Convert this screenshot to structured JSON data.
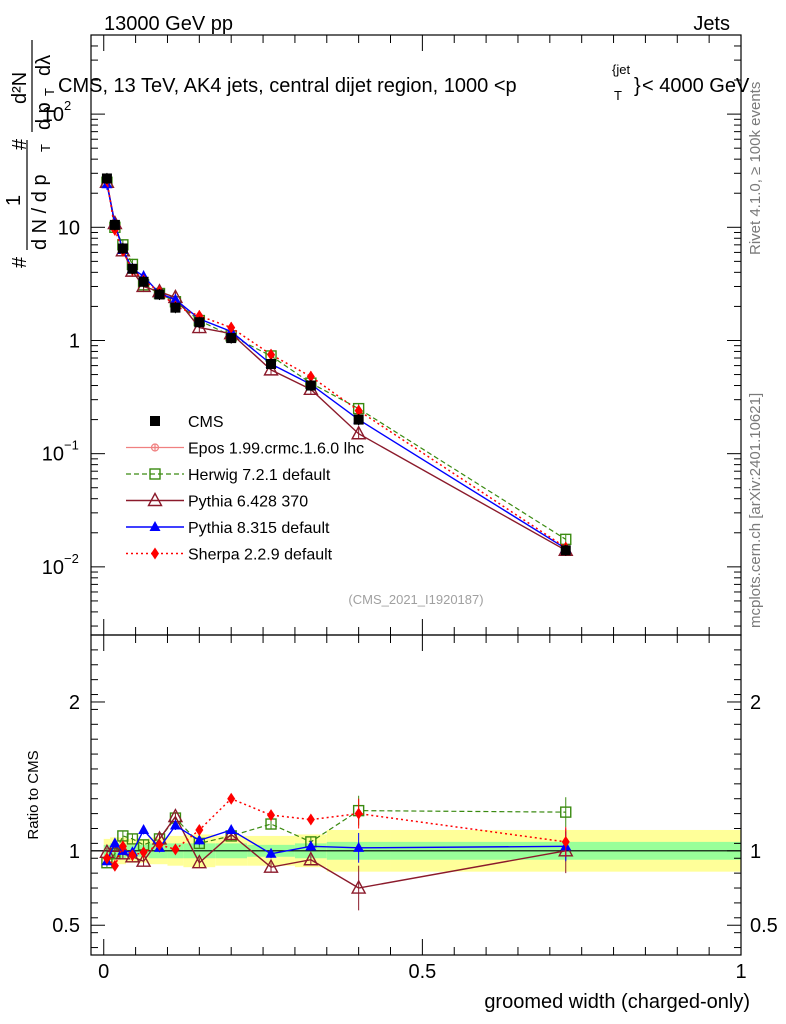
{
  "header": {
    "left": "13000 GeV pp",
    "right": "Jets"
  },
  "side": {
    "rivet": "Rivet 4.1.0, ≥ 100k events",
    "mcplots": "mcplots.cern.ch [arXiv:2401.10621]"
  },
  "colors": {
    "cms": "#000000",
    "epos": "#f08080",
    "herwig": "#3a8a10",
    "pythia6": "#8b1a2b",
    "pythia8": "#0000ff",
    "sherpa": "#ff0000",
    "band_green": "#99ff99",
    "band_yellow": "#ffff99"
  },
  "chart_data": [
    {
      "type": "scatter",
      "panel": "main",
      "title": "CMS, 13 TeV, AK4 jets, central dijet region, 1000 <p_T^{jet}< 4000 GeV",
      "title_parts": {
        "main": "CMS, 13 TeV, AK4 jets, central dijet region, 1000 <p",
        "sup": "{jet",
        "sub": "T",
        "close": "}",
        "tail": "< 4000 GeV"
      },
      "ylabel_parts": {
        "hash": "#",
        "one": "1",
        "dN": "d N / d p",
        "T": "T",
        "d2N": "d²N",
        "dpt": "d p",
        "dlam": "dλ"
      },
      "yscale": "log",
      "ylim": [
        0.0025,
        500
      ],
      "xlim": [
        -0.02,
        1.0
      ],
      "yticks": [
        {
          "v": 0.01,
          "base": "10",
          "exp": "−2"
        },
        {
          "v": 0.1,
          "base": "10",
          "exp": "−1"
        },
        {
          "v": 1,
          "base": "1",
          "exp": ""
        },
        {
          "v": 10,
          "base": "10",
          "exp": ""
        },
        {
          "v": 100,
          "base": "10",
          "exp": "2"
        }
      ],
      "watermark": "(CMS_2021_I1920187)",
      "legend": [
        "CMS",
        "Epos 1.99.crmc.1.6.0 lhc",
        "Herwig 7.2.1 default",
        "Pythia 6.428 370",
        "Pythia 8.315 default",
        "Sherpa 2.2.9 default"
      ],
      "x": [
        0.005,
        0.0175,
        0.03,
        0.045,
        0.0625,
        0.0875,
        0.1125,
        0.15,
        0.2,
        0.2625,
        0.325,
        0.4,
        0.725
      ],
      "series": [
        {
          "name": "CMS",
          "key": "cms",
          "values": [
            27,
            10.5,
            6.5,
            4.3,
            3.3,
            2.55,
            1.95,
            1.45,
            1.05,
            0.62,
            0.4,
            0.2,
            0.014
          ]
        },
        {
          "name": "Epos 1.99.crmc.1.6.0 lhc",
          "key": "epos",
          "values": []
        },
        {
          "name": "Herwig 7.2.1 default",
          "key": "herwig",
          "values": [
            25,
            10,
            7,
            4.7,
            3.1,
            2.6,
            2.2,
            1.5,
            1.1,
            0.73,
            0.42,
            0.25,
            0.0175
          ]
        },
        {
          "name": "Pythia 6.428 370",
          "key": "pythia6",
          "values": [
            25,
            10.8,
            6.2,
            4.1,
            3.0,
            2.7,
            2.4,
            1.3,
            1.15,
            0.55,
            0.37,
            0.15,
            0.014
          ]
        },
        {
          "name": "Pythia 8.315 default",
          "key": "pythia8",
          "values": [
            24,
            10.8,
            6.3,
            4.3,
            3.7,
            2.6,
            2.3,
            1.55,
            1.2,
            0.62,
            0.41,
            0.2,
            0.0145
          ]
        },
        {
          "name": "Sherpa 2.2.9 default",
          "key": "sherpa",
          "values": [
            26,
            9.5,
            6.2,
            4.2,
            3.4,
            2.7,
            2.0,
            1.65,
            1.3,
            0.75,
            0.48,
            0.24,
            0.0148
          ]
        }
      ]
    },
    {
      "type": "scatter",
      "panel": "ratio",
      "ylabel": "Ratio to CMS",
      "xlabel": "groomed width (charged-only)",
      "ylim": [
        0.3,
        2.45
      ],
      "yticks": [
        0.5,
        1,
        2
      ],
      "xticks": [
        0,
        0.5,
        1
      ],
      "xtick_labels": [
        "0",
        "0.5",
        "1"
      ],
      "reference": 1,
      "band_edges": [
        0.0,
        0.01,
        0.025,
        0.035,
        0.055,
        0.07,
        0.1,
        0.125,
        0.175,
        0.225,
        0.3,
        0.35,
        0.45,
        1.0
      ],
      "band_green_halfwidth": [
        0.04,
        0.05,
        0.05,
        0.04,
        0.04,
        0.05,
        0.05,
        0.05,
        0.05,
        0.04,
        0.05,
        0.06,
        0.06
      ],
      "band_yellow_halfwidth": [
        0.08,
        0.09,
        0.09,
        0.08,
        0.08,
        0.09,
        0.1,
        0.11,
        0.1,
        0.1,
        0.11,
        0.14,
        0.14
      ],
      "x": [
        0.005,
        0.0175,
        0.03,
        0.045,
        0.0625,
        0.0875,
        0.1125,
        0.15,
        0.2,
        0.2625,
        0.325,
        0.4,
        0.725
      ],
      "series": [
        {
          "name": "Herwig 7.2.1 default",
          "key": "herwig",
          "values": [
            0.92,
            0.98,
            1.1,
            1.08,
            1.04,
            1.08,
            1.22,
            1.05,
            1.1,
            1.18,
            1.06,
            1.27,
            1.26
          ]
        },
        {
          "name": "Pythia 6.428 370",
          "key": "pythia6",
          "values": [
            0.99,
            1.03,
            0.98,
            0.96,
            0.93,
            1.08,
            1.23,
            0.92,
            1.11,
            0.89,
            0.94,
            0.75,
            1.0
          ]
        },
        {
          "name": "Pythia 8.315 default",
          "key": "pythia8",
          "values": [
            0.93,
            1.05,
            1.0,
            0.99,
            1.14,
            1.02,
            1.17,
            1.07,
            1.14,
            0.98,
            1.03,
            1.02,
            1.03
          ]
        },
        {
          "name": "Sherpa 2.2.9 default",
          "key": "sherpa",
          "values": [
            0.95,
            0.9,
            1.03,
            0.97,
            0.99,
            1.04,
            1.01,
            1.14,
            1.35,
            1.24,
            1.21,
            1.25,
            1.06
          ]
        }
      ]
    }
  ]
}
